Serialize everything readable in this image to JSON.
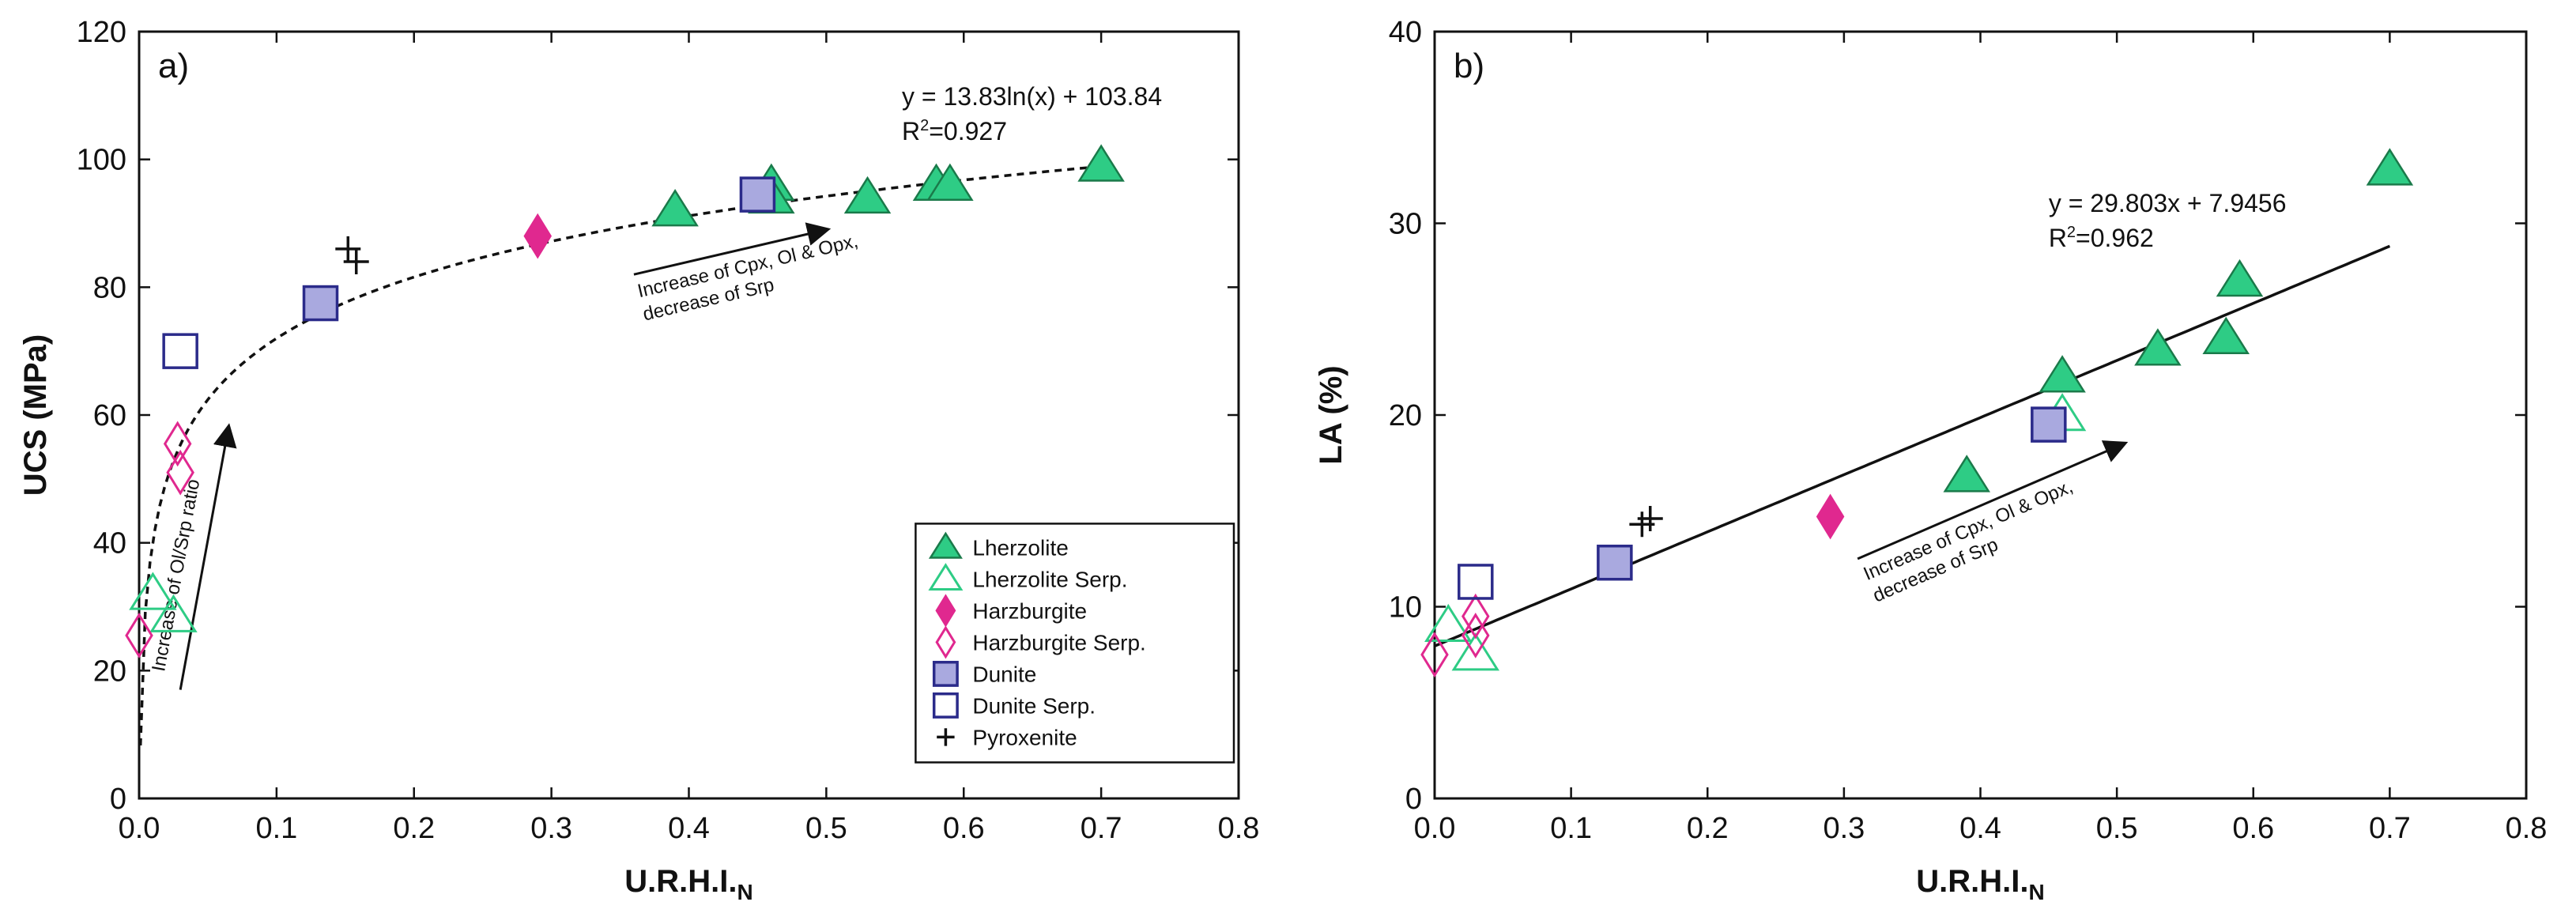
{
  "colors": {
    "lherzolite": "#2ecc85",
    "harzburgite": "#e0288f",
    "dunite_fill": "#a9a9df",
    "dunite_edge": "#2b2b8a",
    "pyroxenite": "#111111",
    "axis": "#111111"
  },
  "chart_data": [
    {
      "type": "scatter",
      "panel_label": "a)",
      "xlabel_main": "U.R.H.I.",
      "xlabel_sub": "N",
      "ylabel": "UCS (MPa)",
      "xlim": [
        0.0,
        0.8
      ],
      "ylim": [
        0,
        120
      ],
      "x_ticks": [
        "0.0",
        "0.1",
        "0.2",
        "0.3",
        "0.4",
        "0.5",
        "0.6",
        "0.7",
        "0.8"
      ],
      "y_ticks": [
        "0",
        "20",
        "40",
        "60",
        "80",
        "100",
        "120"
      ],
      "fit": {
        "type": "log",
        "a": 13.83,
        "b": 103.84,
        "x_range": [
          0.001,
          0.7
        ],
        "style": "dashed",
        "equation": "y = 13.83ln(x) + 103.84",
        "r2_prefix": "R",
        "r2_sup": "2",
        "r2_value": "=0.927"
      },
      "annotations": [
        {
          "id": "ann-a-1",
          "lines": [
            "Increase of Cpx, Ol & Opx,",
            "decrease of Srp"
          ],
          "arrow_from": [
            0.36,
            82
          ],
          "arrow_to": [
            0.5,
            89
          ]
        },
        {
          "id": "ann-a-2",
          "lines": [
            "Increase of Ol/Srp ratio"
          ],
          "arrow_from": [
            0.03,
            17
          ],
          "arrow_to": [
            0.065,
            58
          ]
        }
      ],
      "series": [
        {
          "name": "Lherzolite",
          "marker": "triangle",
          "filled": true,
          "color": "#2ecc85",
          "points": [
            [
              0.39,
              92
            ],
            [
              0.46,
              96
            ],
            [
              0.46,
              94
            ],
            [
              0.53,
              94
            ],
            [
              0.58,
              96
            ],
            [
              0.59,
              96
            ],
            [
              0.7,
              99
            ]
          ]
        },
        {
          "name": "Lherzolite Serp.",
          "marker": "triangle",
          "filled": false,
          "color": "#2ecc85",
          "points": [
            [
              0.01,
              32
            ],
            [
              0.025,
              28.5
            ]
          ]
        },
        {
          "name": "Harzburgite",
          "marker": "diamond",
          "filled": true,
          "color": "#e0288f",
          "points": [
            [
              0.29,
              88
            ]
          ]
        },
        {
          "name": "Harzburgite Serp.",
          "marker": "diamond",
          "filled": false,
          "color": "#e0288f",
          "points": [
            [
              0.0,
              25.5
            ],
            [
              0.028,
              55.5
            ],
            [
              0.03,
              51
            ]
          ]
        },
        {
          "name": "Dunite",
          "marker": "square",
          "filled": true,
          "color": "#a9a9df",
          "points": [
            [
              0.132,
              77.5
            ],
            [
              0.45,
              94.5
            ]
          ]
        },
        {
          "name": "Dunite Serp.",
          "marker": "square",
          "filled": false,
          "color": "#2b2b8a",
          "points": [
            [
              0.03,
              70
            ]
          ]
        },
        {
          "name": "Pyroxenite",
          "marker": "plus",
          "filled": false,
          "color": "#111111",
          "points": [
            [
              0.152,
              86
            ],
            [
              0.158,
              84
            ]
          ]
        }
      ],
      "legend": {
        "placement": "bottom-right",
        "entries": [
          "Lherzolite",
          "Lherzolite Serp.",
          "Harzburgite",
          "Harzburgite Serp.",
          "Dunite",
          "Dunite Serp.",
          "Pyroxenite"
        ]
      }
    },
    {
      "type": "scatter",
      "panel_label": "b)",
      "xlabel_main": "U.R.H.I.",
      "xlabel_sub": "N",
      "ylabel": "LA (%)",
      "xlim": [
        0.0,
        0.8
      ],
      "ylim": [
        0,
        40
      ],
      "x_ticks": [
        "0.0",
        "0.1",
        "0.2",
        "0.3",
        "0.4",
        "0.5",
        "0.6",
        "0.7",
        "0.8"
      ],
      "y_ticks": [
        "0",
        "10",
        "20",
        "30",
        "40"
      ],
      "fit": {
        "type": "linear",
        "a": 29.803,
        "b": 7.9456,
        "x_range": [
          0.0,
          0.7
        ],
        "style": "solid",
        "equation": "y = 29.803x + 7.9456",
        "r2_prefix": "R",
        "r2_sup": "2",
        "r2_value": "=0.962"
      },
      "annotations": [
        {
          "id": "ann-b-1",
          "lines": [
            "Increase of Cpx, Ol & Opx,",
            "decrease of Srp"
          ],
          "arrow_from": [
            0.31,
            12.5
          ],
          "arrow_to": [
            0.505,
            18.5
          ]
        }
      ],
      "series": [
        {
          "name": "Lherzolite",
          "marker": "triangle",
          "filled": true,
          "color": "#2ecc85",
          "points": [
            [
              0.39,
              16.8
            ],
            [
              0.46,
              22
            ],
            [
              0.53,
              23.4
            ],
            [
              0.58,
              24
            ],
            [
              0.59,
              27
            ],
            [
              0.7,
              32.8
            ]
          ]
        },
        {
          "name": "Lherzolite Serp.",
          "marker": "triangle",
          "filled": false,
          "color": "#2ecc85",
          "points": [
            [
              0.01,
              9
            ],
            [
              0.03,
              7.5
            ],
            [
              0.46,
              20
            ]
          ]
        },
        {
          "name": "Harzburgite",
          "marker": "diamond",
          "filled": true,
          "color": "#e0288f",
          "points": [
            [
              0.29,
              14.7
            ]
          ]
        },
        {
          "name": "Harzburgite Serp.",
          "marker": "diamond",
          "filled": false,
          "color": "#e0288f",
          "points": [
            [
              0.0,
              7.5
            ],
            [
              0.03,
              9.5
            ],
            [
              0.03,
              8.5
            ]
          ]
        },
        {
          "name": "Dunite",
          "marker": "square",
          "filled": true,
          "color": "#a9a9df",
          "points": [
            [
              0.132,
              12.3
            ],
            [
              0.45,
              19.5
            ]
          ]
        },
        {
          "name": "Dunite Serp.",
          "marker": "square",
          "filled": false,
          "color": "#2b2b8a",
          "points": [
            [
              0.03,
              11.3
            ]
          ]
        },
        {
          "name": "Pyroxenite",
          "marker": "plus",
          "filled": false,
          "color": "#111111",
          "points": [
            [
              0.152,
              14.3
            ],
            [
              0.158,
              14.6
            ]
          ]
        }
      ]
    }
  ]
}
